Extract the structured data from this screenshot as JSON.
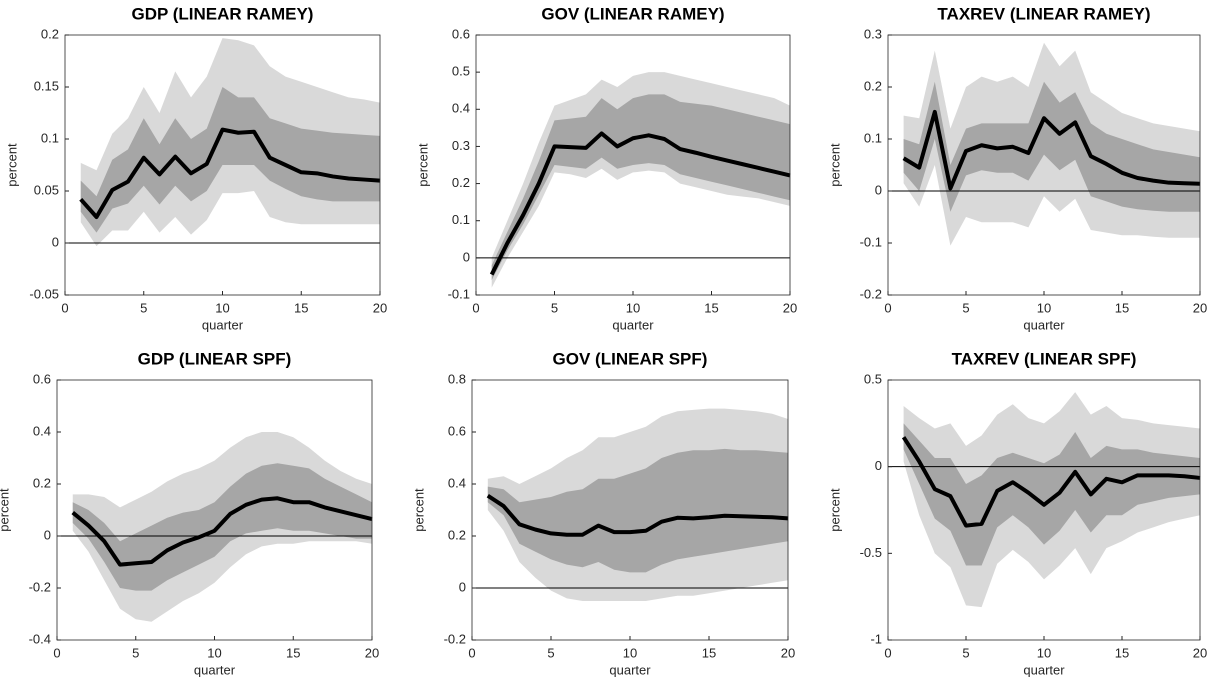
{
  "chart_data": [
    {
      "type": "line",
      "title": "GDP (LINEAR RAMEY)",
      "xlabel": "quarter",
      "ylabel": "percent",
      "zero_line": true,
      "color": "#000000",
      "x": [
        1,
        2,
        3,
        4,
        5,
        6,
        7,
        8,
        9,
        10,
        11,
        12,
        13,
        14,
        15,
        16,
        17,
        18,
        19,
        20
      ],
      "xlim": [
        0,
        20
      ],
      "xticks": [
        0,
        5,
        10,
        15,
        20
      ],
      "ylim": [
        -0.05,
        0.2
      ],
      "yticks": [
        -0.05,
        0,
        0.05,
        0.1,
        0.15,
        0.2
      ],
      "values": [
        0.042,
        0.025,
        0.051,
        0.059,
        0.082,
        0.066,
        0.083,
        0.067,
        0.076,
        0.109,
        0.106,
        0.107,
        0.082,
        0.075,
        0.068,
        0.067,
        0.064,
        0.062,
        0.061,
        0.06
      ],
      "bands": [
        {
          "color": "#d9d9d9",
          "upper": [
            0.077,
            0.07,
            0.105,
            0.12,
            0.15,
            0.125,
            0.165,
            0.14,
            0.16,
            0.197,
            0.195,
            0.19,
            0.17,
            0.16,
            0.155,
            0.15,
            0.145,
            0.14,
            0.138,
            0.135
          ],
          "lower": [
            0.02,
            -0.003,
            0.012,
            0.012,
            0.03,
            0.01,
            0.025,
            0.008,
            0.022,
            0.048,
            0.048,
            0.05,
            0.025,
            0.02,
            0.018,
            0.018,
            0.018,
            0.018,
            0.018,
            0.018
          ]
        },
        {
          "color": "#a6a6a6",
          "upper": [
            0.06,
            0.045,
            0.08,
            0.09,
            0.12,
            0.095,
            0.12,
            0.1,
            0.11,
            0.15,
            0.14,
            0.14,
            0.12,
            0.115,
            0.11,
            0.108,
            0.106,
            0.105,
            0.104,
            0.103
          ],
          "lower": [
            0.03,
            0.01,
            0.033,
            0.038,
            0.055,
            0.037,
            0.055,
            0.04,
            0.05,
            0.075,
            0.075,
            0.075,
            0.06,
            0.052,
            0.045,
            0.042,
            0.04,
            0.04,
            0.04,
            0.04
          ]
        }
      ]
    },
    {
      "type": "line",
      "title": "GOV (LINEAR RAMEY)",
      "xlabel": "quarter",
      "ylabel": "percent",
      "zero_line": true,
      "color": "#000000",
      "x": [
        1,
        2,
        3,
        4,
        5,
        6,
        7,
        8,
        9,
        10,
        11,
        12,
        13,
        14,
        15,
        16,
        17,
        18,
        19,
        20
      ],
      "xlim": [
        0,
        20
      ],
      "xticks": [
        0,
        5,
        10,
        15,
        20
      ],
      "ylim": [
        -0.1,
        0.6
      ],
      "yticks": [
        -0.1,
        0,
        0.1,
        0.2,
        0.3,
        0.4,
        0.5,
        0.6
      ],
      "values": [
        -0.045,
        0.04,
        0.115,
        0.2,
        0.3,
        0.298,
        0.296,
        0.335,
        0.3,
        0.322,
        0.33,
        0.32,
        0.293,
        0.283,
        0.272,
        0.262,
        0.252,
        0.242,
        0.232,
        0.222
      ],
      "bands": [
        {
          "color": "#d9d9d9",
          "upper": [
            0,
            0.1,
            0.2,
            0.31,
            0.41,
            0.425,
            0.44,
            0.48,
            0.46,
            0.49,
            0.5,
            0.5,
            0.49,
            0.48,
            0.47,
            0.46,
            0.45,
            0.44,
            0.43,
            0.41
          ],
          "lower": [
            -0.08,
            0,
            0.07,
            0.14,
            0.23,
            0.225,
            0.215,
            0.24,
            0.21,
            0.23,
            0.235,
            0.23,
            0.2,
            0.19,
            0.18,
            0.17,
            0.165,
            0.16,
            0.15,
            0.14
          ]
        },
        {
          "color": "#a6a6a6",
          "upper": [
            -0.02,
            0.07,
            0.16,
            0.26,
            0.37,
            0.375,
            0.38,
            0.43,
            0.4,
            0.43,
            0.44,
            0.44,
            0.42,
            0.415,
            0.41,
            0.4,
            0.39,
            0.38,
            0.37,
            0.36
          ],
          "lower": [
            -0.06,
            0.02,
            0.09,
            0.17,
            0.25,
            0.245,
            0.24,
            0.27,
            0.24,
            0.25,
            0.255,
            0.25,
            0.225,
            0.215,
            0.205,
            0.195,
            0.185,
            0.175,
            0.165,
            0.155
          ]
        }
      ]
    },
    {
      "type": "line",
      "title": "TAXREV (LINEAR RAMEY)",
      "xlabel": "quarter",
      "ylabel": "percent",
      "zero_line": true,
      "color": "#000000",
      "x": [
        1,
        2,
        3,
        4,
        5,
        6,
        7,
        8,
        9,
        10,
        11,
        12,
        13,
        14,
        15,
        16,
        17,
        18,
        19,
        20
      ],
      "xlim": [
        0,
        20
      ],
      "xticks": [
        0,
        5,
        10,
        15,
        20
      ],
      "ylim": [
        -0.2,
        0.3
      ],
      "yticks": [
        -0.2,
        -0.1,
        0,
        0.1,
        0.2,
        0.3
      ],
      "values": [
        0.063,
        0.045,
        0.152,
        0.005,
        0.077,
        0.088,
        0.082,
        0.085,
        0.073,
        0.14,
        0.11,
        0.132,
        0.067,
        0.052,
        0.035,
        0.025,
        0.02,
        0.016,
        0.015,
        0.014
      ],
      "bands": [
        {
          "color": "#d9d9d9",
          "upper": [
            0.145,
            0.14,
            0.27,
            0.12,
            0.2,
            0.22,
            0.21,
            0.22,
            0.2,
            0.285,
            0.24,
            0.27,
            0.19,
            0.17,
            0.15,
            0.14,
            0.13,
            0.125,
            0.12,
            0.115
          ],
          "lower": [
            0.015,
            -0.03,
            0.05,
            -0.105,
            -0.05,
            -0.06,
            -0.06,
            -0.06,
            -0.07,
            -0.01,
            -0.04,
            -0.015,
            -0.075,
            -0.08,
            -0.085,
            -0.085,
            -0.088,
            -0.09,
            -0.09,
            -0.09
          ]
        },
        {
          "color": "#a6a6a6",
          "upper": [
            0.1,
            0.09,
            0.21,
            0.05,
            0.12,
            0.13,
            0.13,
            0.13,
            0.13,
            0.21,
            0.17,
            0.19,
            0.13,
            0.11,
            0.1,
            0.09,
            0.08,
            0.075,
            0.07,
            0.065
          ],
          "lower": [
            0.035,
            0,
            0.1,
            -0.04,
            0.03,
            0.04,
            0.035,
            0.035,
            0.02,
            0.07,
            0.04,
            0.06,
            -0.01,
            -0.02,
            -0.03,
            -0.035,
            -0.038,
            -0.04,
            -0.04,
            -0.04
          ]
        }
      ]
    },
    {
      "type": "line",
      "title": "GDP (LINEAR SPF)",
      "xlabel": "quarter",
      "ylabel": "percent",
      "zero_line": true,
      "color": "#000000",
      "x": [
        1,
        2,
        3,
        4,
        5,
        6,
        7,
        8,
        9,
        10,
        11,
        12,
        13,
        14,
        15,
        16,
        17,
        18,
        19,
        20
      ],
      "xlim": [
        0,
        20
      ],
      "xticks": [
        0,
        5,
        10,
        15,
        20
      ],
      "ylim": [
        -0.4,
        0.6
      ],
      "yticks": [
        -0.4,
        -0.2,
        0,
        0.2,
        0.4,
        0.6
      ],
      "values": [
        0.09,
        0.04,
        -0.02,
        -0.11,
        -0.105,
        -0.1,
        -0.055,
        -0.025,
        -0.005,
        0.02,
        0.085,
        0.12,
        0.14,
        0.145,
        0.13,
        0.13,
        0.11,
        0.095,
        0.08,
        0.065
      ],
      "bands": [
        {
          "color": "#d9d9d9",
          "upper": [
            0.16,
            0.16,
            0.15,
            0.11,
            0.14,
            0.17,
            0.21,
            0.24,
            0.26,
            0.29,
            0.34,
            0.38,
            0.4,
            0.4,
            0.38,
            0.34,
            0.29,
            0.25,
            0.22,
            0.2
          ],
          "lower": [
            0.02,
            -0.06,
            -0.17,
            -0.28,
            -0.32,
            -0.33,
            -0.29,
            -0.25,
            -0.22,
            -0.18,
            -0.12,
            -0.07,
            -0.04,
            -0.03,
            -0.03,
            -0.02,
            -0.02,
            -0.02,
            -0.02,
            -0.03
          ]
        },
        {
          "color": "#a6a6a6",
          "upper": [
            0.13,
            0.1,
            0.05,
            -0.02,
            0.01,
            0.04,
            0.07,
            0.09,
            0.1,
            0.13,
            0.19,
            0.24,
            0.27,
            0.28,
            0.27,
            0.26,
            0.22,
            0.19,
            0.16,
            0.13
          ],
          "lower": [
            0.05,
            -0.01,
            -0.1,
            -0.2,
            -0.21,
            -0.21,
            -0.17,
            -0.14,
            -0.11,
            -0.08,
            -0.02,
            0.01,
            0.02,
            0.03,
            0.02,
            0.02,
            0.01,
            0,
            -0.01,
            -0.01
          ]
        }
      ]
    },
    {
      "type": "line",
      "title": "GOV (LINEAR SPF)",
      "xlabel": "quarter",
      "ylabel": "percent",
      "zero_line": true,
      "color": "#000000",
      "x": [
        1,
        2,
        3,
        4,
        5,
        6,
        7,
        8,
        9,
        10,
        11,
        12,
        13,
        14,
        15,
        16,
        17,
        18,
        19,
        20
      ],
      "xlim": [
        0,
        20
      ],
      "xticks": [
        0,
        5,
        10,
        15,
        20
      ],
      "ylim": [
        -0.2,
        0.8
      ],
      "yticks": [
        -0.2,
        0,
        0.2,
        0.4,
        0.6,
        0.8
      ],
      "values": [
        0.355,
        0.315,
        0.245,
        0.225,
        0.21,
        0.205,
        0.205,
        0.24,
        0.215,
        0.215,
        0.22,
        0.255,
        0.27,
        0.268,
        0.272,
        0.278,
        0.276,
        0.274,
        0.272,
        0.268
      ],
      "bands": [
        {
          "color": "#d9d9d9",
          "upper": [
            0.42,
            0.43,
            0.4,
            0.43,
            0.46,
            0.5,
            0.53,
            0.58,
            0.58,
            0.6,
            0.62,
            0.66,
            0.68,
            0.685,
            0.69,
            0.69,
            0.685,
            0.68,
            0.67,
            0.65
          ],
          "lower": [
            0.3,
            0.22,
            0.1,
            0.04,
            -0.01,
            -0.04,
            -0.05,
            -0.05,
            -0.05,
            -0.05,
            -0.05,
            -0.04,
            -0.03,
            -0.03,
            -0.02,
            -0.01,
            0,
            0.01,
            0.02,
            0.03
          ]
        },
        {
          "color": "#a6a6a6",
          "upper": [
            0.39,
            0.38,
            0.33,
            0.34,
            0.35,
            0.37,
            0.38,
            0.42,
            0.42,
            0.44,
            0.46,
            0.5,
            0.52,
            0.53,
            0.53,
            0.535,
            0.53,
            0.53,
            0.525,
            0.52
          ],
          "lower": [
            0.33,
            0.28,
            0.17,
            0.14,
            0.11,
            0.09,
            0.08,
            0.1,
            0.07,
            0.06,
            0.06,
            0.09,
            0.11,
            0.12,
            0.13,
            0.14,
            0.15,
            0.16,
            0.17,
            0.18
          ]
        }
      ]
    },
    {
      "type": "line",
      "title": "TAXREV (LINEAR SPF)",
      "xlabel": "quarter",
      "ylabel": "percent",
      "zero_line": true,
      "color": "#000000",
      "x": [
        1,
        2,
        3,
        4,
        5,
        6,
        7,
        8,
        9,
        10,
        11,
        12,
        13,
        14,
        15,
        16,
        17,
        18,
        19,
        20
      ],
      "xlim": [
        0,
        20
      ],
      "xticks": [
        0,
        5,
        10,
        15,
        20
      ],
      "ylim": [
        -1,
        0.5
      ],
      "yticks": [
        -1,
        -0.5,
        0,
        0.5
      ],
      "values": [
        0.17,
        0.03,
        -0.13,
        -0.17,
        -0.34,
        -0.33,
        -0.14,
        -0.09,
        -0.15,
        -0.22,
        -0.15,
        -0.03,
        -0.16,
        -0.07,
        -0.09,
        -0.05,
        -0.05,
        -0.05,
        -0.055,
        -0.065
      ],
      "bands": [
        {
          "color": "#d9d9d9",
          "upper": [
            0.35,
            0.28,
            0.22,
            0.25,
            0.12,
            0.18,
            0.3,
            0.36,
            0.28,
            0.25,
            0.32,
            0.43,
            0.3,
            0.35,
            0.28,
            0.27,
            0.25,
            0.24,
            0.23,
            0.22
          ],
          "lower": [
            0.03,
            -0.28,
            -0.5,
            -0.58,
            -0.8,
            -0.81,
            -0.56,
            -0.48,
            -0.55,
            -0.65,
            -0.57,
            -0.47,
            -0.62,
            -0.47,
            -0.43,
            -0.38,
            -0.35,
            -0.32,
            -0.3,
            -0.28
          ]
        },
        {
          "color": "#a6a6a6",
          "upper": [
            0.25,
            0.15,
            0.05,
            0.05,
            -0.1,
            -0.05,
            0.05,
            0.08,
            0.05,
            0.02,
            0.07,
            0.2,
            0.05,
            0.12,
            0.1,
            0.1,
            0.08,
            0.07,
            0.06,
            0.05
          ],
          "lower": [
            0.1,
            -0.1,
            -0.3,
            -0.37,
            -0.57,
            -0.57,
            -0.35,
            -0.28,
            -0.35,
            -0.45,
            -0.37,
            -0.25,
            -0.38,
            -0.28,
            -0.28,
            -0.22,
            -0.2,
            -0.18,
            -0.17,
            -0.16
          ]
        }
      ]
    }
  ]
}
